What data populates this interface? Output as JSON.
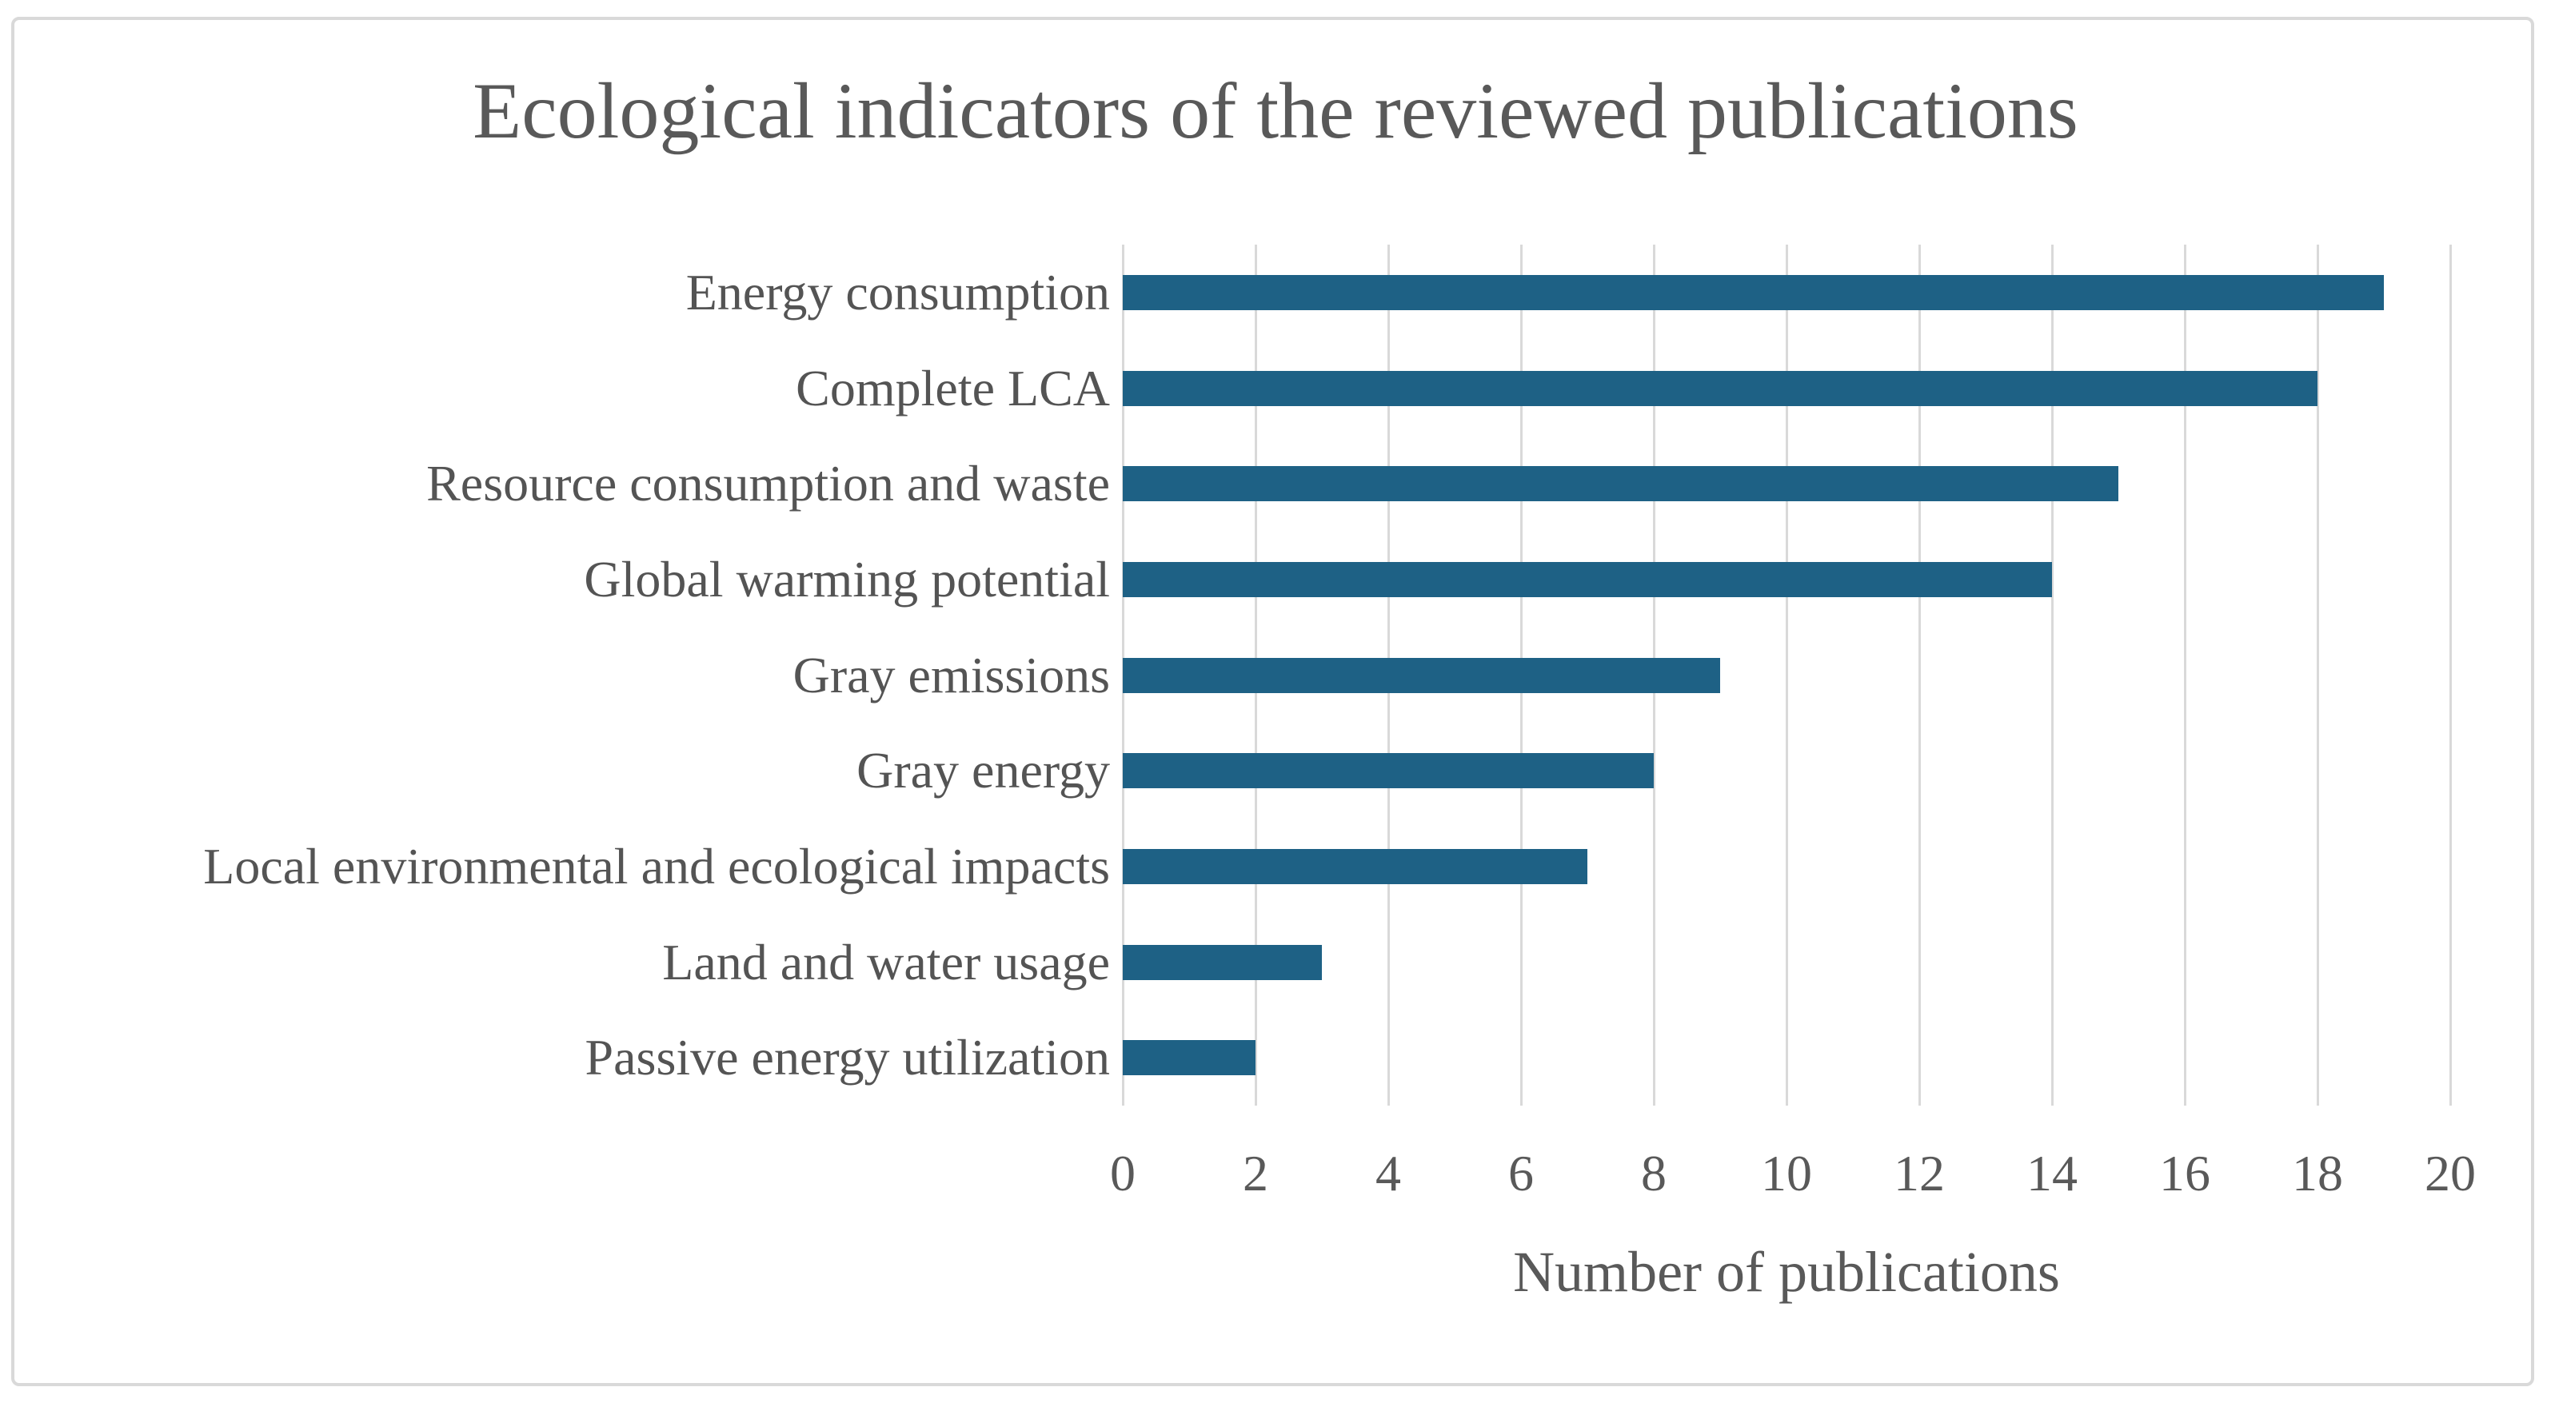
{
  "frame": {
    "border_color": "#D9D9D9",
    "background_color": "#FFFFFF"
  },
  "chart_data": {
    "type": "bar",
    "orientation": "horizontal",
    "title": "Ecological indicators of the reviewed publications",
    "xlabel": "Number of publications",
    "ylabel": "",
    "categories": [
      "Energy consumption",
      "Complete LCA",
      "Resource consumption and waste",
      "Global warming potential",
      "Gray emissions",
      "Gray energy",
      "Local environmental and ecological impacts",
      "Land and water usage",
      "Passive energy utilization"
    ],
    "values": [
      19,
      18,
      15,
      14,
      9,
      8,
      7,
      3,
      2
    ],
    "xlim": [
      0,
      20
    ],
    "xticks": [
      0,
      2,
      4,
      6,
      8,
      10,
      12,
      14,
      16,
      18,
      20
    ],
    "grid": "vertical-only",
    "legend": "none",
    "bar_color": "#1E6185",
    "gridline_color": "#D9D9D9",
    "text_color": "#595959",
    "title_color": "#595959"
  }
}
